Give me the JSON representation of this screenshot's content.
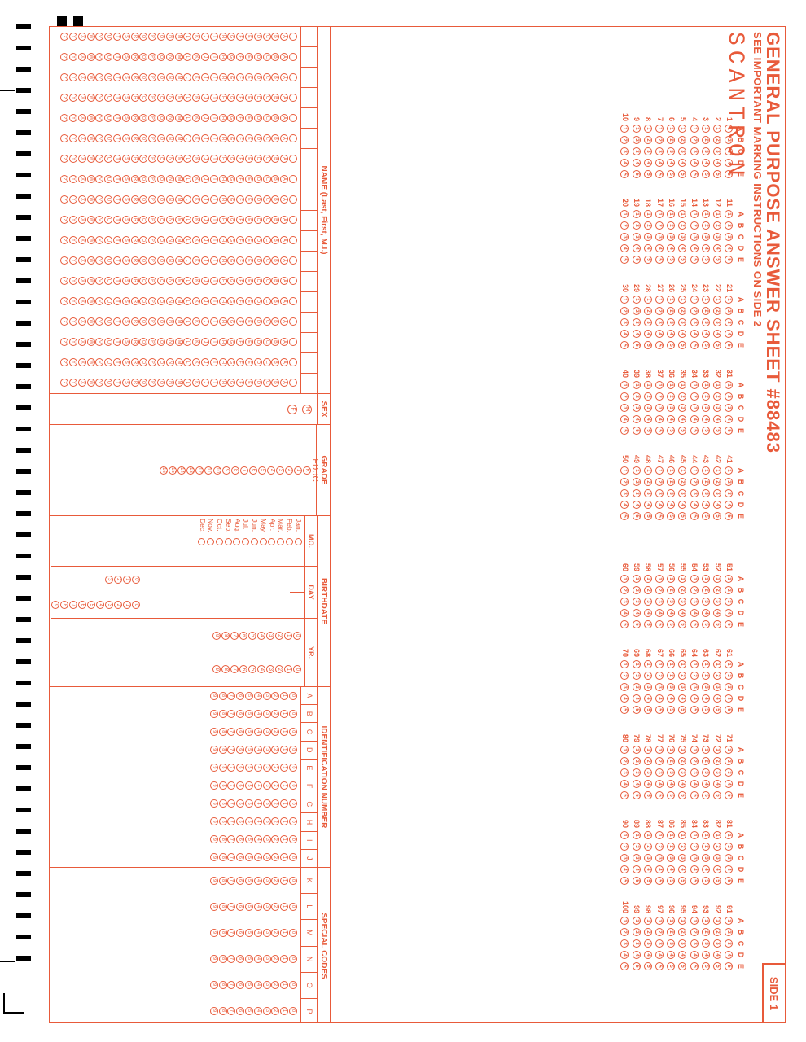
{
  "title": "GENERAL PURPOSE ANSWER SHEET",
  "serial": "#88483",
  "instructions": "SEE IMPORTANT MARKING INSTRUCTIONS ON SIDE 2",
  "side_label": "SIDE 1",
  "brand": "SCANTRON",
  "colors": {
    "ink": "#e85a3a",
    "background": "#ffffff",
    "black": "#000000"
  },
  "answers": {
    "choice_letters": [
      "A",
      "B",
      "C",
      "D",
      "E"
    ],
    "choice_digits": [
      "1",
      "2",
      "3",
      "4",
      "5"
    ],
    "question_count": 100,
    "layout": {
      "questions_per_column": 10,
      "columns": 10,
      "gap_after_column": 5
    }
  },
  "name_section": {
    "label": "NAME (Last, First, M.I.)",
    "alphabet": [
      "A",
      "B",
      "C",
      "D",
      "E",
      "F",
      "G",
      "H",
      "I",
      "J",
      "K",
      "L",
      "M",
      "N",
      "O",
      "P",
      "Q",
      "R",
      "S",
      "T",
      "U",
      "V",
      "W",
      "X",
      "Y",
      "Z"
    ],
    "writein_cells": 18,
    "columns": 18
  },
  "sex_section": {
    "label": "SEX",
    "options": [
      "M",
      "F"
    ]
  },
  "grade_section": {
    "label": "GRADE",
    "label2": "EDUC",
    "values": [
      "K",
      "1",
      "2",
      "3",
      "4",
      "5",
      "6",
      "7",
      "8",
      "9",
      "10",
      "11",
      "12",
      "13",
      "14",
      "15",
      "16"
    ]
  },
  "birthdate_section": {
    "label": "BIRTHDATE",
    "month_label": "MO.",
    "day_label": "DAY",
    "year_label": "YR.",
    "months": [
      "Jan.",
      "Feb.",
      "Mar.",
      "Apr.",
      "May",
      "Jun.",
      "Jul.",
      "Aug.",
      "Sep.",
      "Oct.",
      "Nov.",
      "Dec."
    ],
    "digits": [
      "0",
      "1",
      "2",
      "3",
      "4",
      "5",
      "6",
      "7",
      "8",
      "9"
    ]
  },
  "id_section": {
    "label": "IDENTIFICATION NUMBER",
    "row_letters": [
      "A",
      "B",
      "C",
      "D",
      "E",
      "F",
      "G",
      "H",
      "I",
      "J"
    ],
    "digits": [
      "0",
      "1",
      "2",
      "3",
      "4",
      "5",
      "6",
      "7",
      "8",
      "9"
    ],
    "writein_cells": 10,
    "columns": 10
  },
  "codes_section": {
    "label": "SPECIAL CODES",
    "row_letters": [
      "K",
      "L",
      "M",
      "N",
      "O",
      "P"
    ],
    "digits": [
      "0",
      "1",
      "2",
      "3",
      "4",
      "5",
      "6",
      "7",
      "8",
      "9"
    ],
    "columns": 6
  }
}
